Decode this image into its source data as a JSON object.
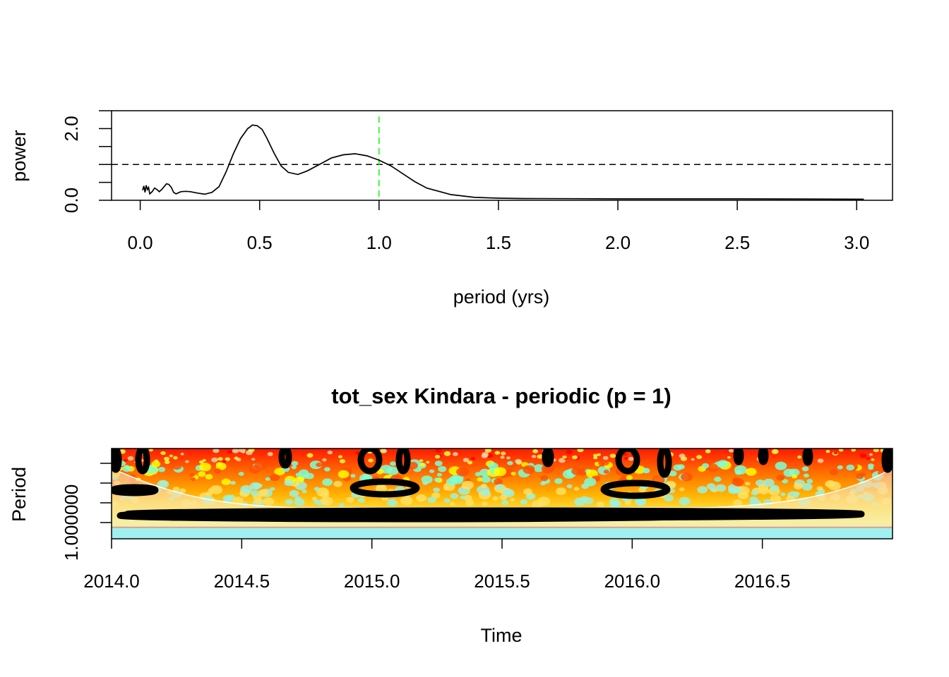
{
  "chart_data": [
    {
      "type": "line",
      "title": "",
      "xlabel": "period (yrs)",
      "ylabel": "power",
      "xlim": [
        -0.12,
        3.15
      ],
      "ylim": [
        0.0,
        2.5
      ],
      "x_ticks": [
        "0.0",
        "0.5",
        "1.0",
        "1.5",
        "2.0",
        "2.5",
        "3.0"
      ],
      "y_tick_labels": [
        "0.0",
        "2.0"
      ],
      "reference_lines": {
        "horizontal_dashed_y": 1.0,
        "vertical_dashed_x": 1.0,
        "vertical_color": "#00ff00"
      },
      "series": [
        {
          "x": [
            0.01,
            0.015,
            0.02,
            0.025,
            0.03,
            0.035,
            0.04,
            0.05,
            0.06,
            0.07,
            0.08,
            0.09,
            0.1,
            0.11,
            0.12,
            0.13,
            0.14,
            0.15,
            0.17,
            0.19,
            0.21,
            0.24,
            0.27,
            0.3,
            0.33,
            0.36,
            0.39,
            0.42,
            0.45,
            0.47,
            0.49,
            0.51,
            0.53,
            0.56,
            0.59,
            0.62,
            0.66,
            0.7,
            0.75,
            0.8,
            0.85,
            0.9,
            0.95,
            1.0,
            1.05,
            1.1,
            1.15,
            1.2,
            1.3,
            1.4,
            1.5,
            1.6,
            1.8,
            2.0,
            2.5,
            3.03
          ],
          "y": [
            0.28,
            0.4,
            0.22,
            0.42,
            0.3,
            0.36,
            0.18,
            0.24,
            0.34,
            0.3,
            0.24,
            0.3,
            0.38,
            0.46,
            0.44,
            0.36,
            0.22,
            0.18,
            0.24,
            0.25,
            0.24,
            0.2,
            0.17,
            0.22,
            0.38,
            0.8,
            1.3,
            1.72,
            2.0,
            2.1,
            2.08,
            1.98,
            1.74,
            1.32,
            0.96,
            0.78,
            0.72,
            0.82,
            1.0,
            1.18,
            1.27,
            1.3,
            1.24,
            1.12,
            0.96,
            0.74,
            0.52,
            0.34,
            0.16,
            0.08,
            0.06,
            0.05,
            0.045,
            0.04,
            0.04,
            0.03
          ]
        }
      ]
    },
    {
      "type": "heatmap",
      "title": "tot_sex Kindara - periodic (p = 1)",
      "xlabel": "Time",
      "ylabel": "Period",
      "xlim": [
        2014.0,
        2017.0
      ],
      "x_ticks": [
        "2014.0",
        "2014.5",
        "2015.0",
        "2015.5",
        "2016.0",
        "2016.5"
      ],
      "y_tick_labels": [
        "1.000000"
      ],
      "colormap": [
        "#ff0000",
        "#ff8c00",
        "#ffff00",
        "#7fffd4",
        "#00bfff"
      ]
    }
  ]
}
